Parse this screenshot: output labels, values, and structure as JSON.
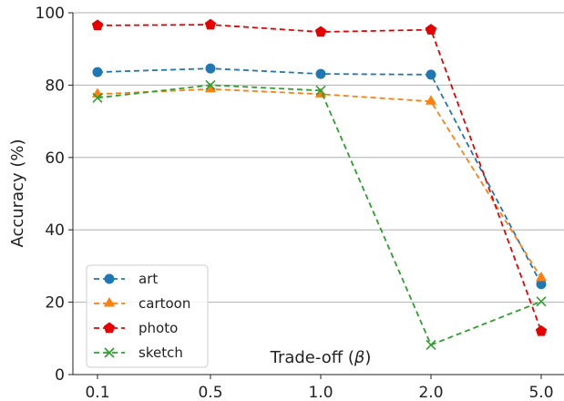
{
  "chart_data": {
    "type": "line",
    "categories": [
      "0.1",
      "0.5",
      "1.0",
      "2.0",
      "5.0"
    ],
    "xlabel": "Trade-off ($\\beta$)",
    "xlabel_parts": {
      "pre": "Trade-off (",
      "sym": "β",
      "post": ")"
    },
    "ylabel": "Accuracy (%)",
    "ylim": [
      0,
      100
    ],
    "yticks": [
      0,
      20,
      40,
      60,
      80,
      100
    ],
    "grid": "horizontal",
    "legend": "bottom-left",
    "series": [
      {
        "name": "art",
        "color": "#1f77b4",
        "marker": "circle",
        "values": [
          83.6,
          84.6,
          83.1,
          82.9,
          25.0
        ]
      },
      {
        "name": "cartoon",
        "color": "#ff7f0e",
        "marker": "triangle",
        "values": [
          77.5,
          78.9,
          77.5,
          75.5,
          26.7
        ]
      },
      {
        "name": "photo",
        "color": "#e60000",
        "marker": "pentagon",
        "values": [
          96.5,
          96.7,
          94.7,
          95.3,
          12.0
        ]
      },
      {
        "name": "sketch",
        "color": "#2ca02c",
        "marker": "x",
        "values": [
          76.5,
          80.0,
          78.5,
          8.2,
          20.2
        ]
      }
    ]
  }
}
